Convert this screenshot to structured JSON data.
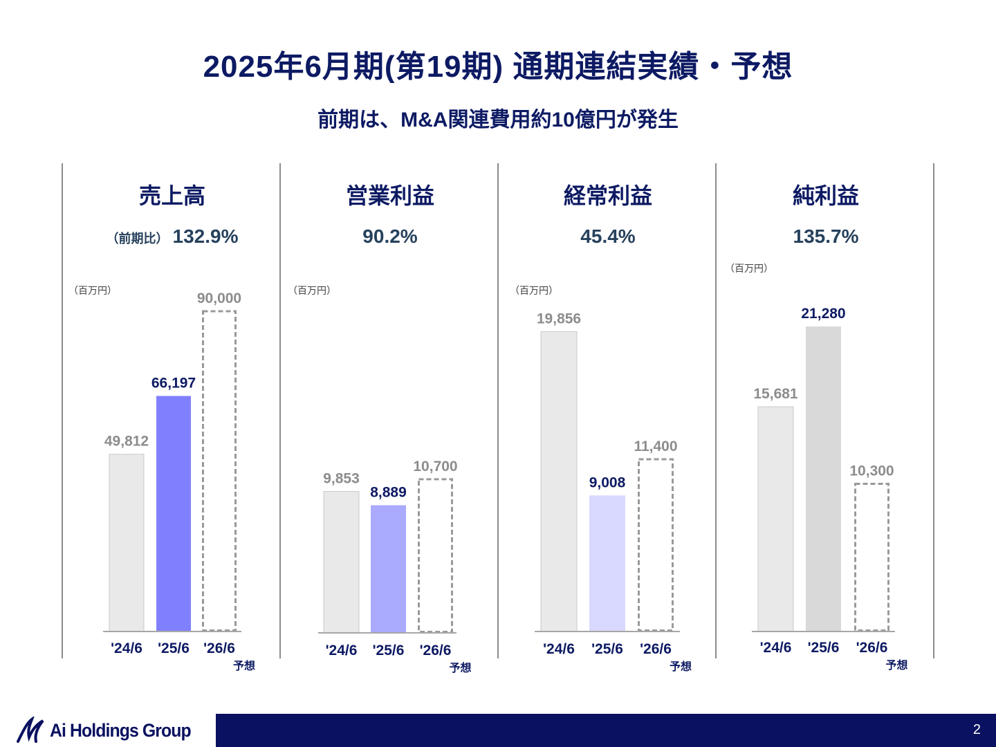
{
  "title": "2025年6月期(第19期) 通期連結実績・予想",
  "subtitle": "前期は、M&A関連費用約10億円が発生",
  "yoy_prefix": "（前期比）",
  "forecast_label": "予想",
  "footer": {
    "logo_text": "Ai Holdings Group",
    "page_number": "2"
  },
  "colors": {
    "navy": "#0d1a63",
    "prev_bar": "#e9e9e9",
    "forecast_border": "#999999"
  },
  "chart_data": [
    {
      "type": "bar",
      "title": "売上高",
      "yoy": "132.9%",
      "unit": "（百万円）",
      "categories": [
        "'24/6",
        "'25/6",
        "'26/6"
      ],
      "values": [
        49812,
        66197,
        90000
      ],
      "value_labels": [
        "49,812",
        "66,197",
        "90,000"
      ],
      "bar_colors": [
        "#e9e9e9",
        "#8080ff",
        "none"
      ],
      "label_colors": [
        "#8c8c8c",
        "#0d1a63",
        "#8c8c8c"
      ],
      "forecast": [
        false,
        false,
        true
      ],
      "ylim": [
        0,
        90000
      ]
    },
    {
      "type": "bar",
      "title": "営業利益",
      "yoy": "90.2%",
      "unit": "（百万円）",
      "categories": [
        "'24/6",
        "'25/6",
        "'26/6"
      ],
      "values": [
        9853,
        8889,
        10700
      ],
      "value_labels": [
        "9,853",
        "8,889",
        "10,700"
      ],
      "bar_colors": [
        "#e9e9e9",
        "#aaaaff",
        "none"
      ],
      "label_colors": [
        "#8c8c8c",
        "#0d1a63",
        "#8c8c8c"
      ],
      "forecast": [
        false,
        false,
        true
      ],
      "ylim": [
        0,
        22400
      ]
    },
    {
      "type": "bar",
      "title": "経常利益",
      "yoy": "45.4%",
      "unit": "（百万円）",
      "categories": [
        "'24/6",
        "'25/6",
        "'26/6"
      ],
      "values": [
        19856,
        9008,
        11400
      ],
      "value_labels": [
        "19,856",
        "9,008",
        "11,400"
      ],
      "bar_colors": [
        "#e9e9e9",
        "#d9d9ff",
        "none"
      ],
      "label_colors": [
        "#8c8c8c",
        "#0d1a63",
        "#8c8c8c"
      ],
      "forecast": [
        false,
        false,
        true
      ],
      "ylim": [
        0,
        21200
      ]
    },
    {
      "type": "bar",
      "title": "純利益",
      "yoy": "135.7%",
      "unit": "（百万円）",
      "categories": [
        "'24/6",
        "'25/6",
        "'26/6"
      ],
      "values": [
        15681,
        21280,
        10300
      ],
      "value_labels": [
        "15,681",
        "21,280",
        "10,300"
      ],
      "bar_colors": [
        "#e9e9e9",
        "#d9d9d9",
        "none"
      ],
      "label_colors": [
        "#8c8c8c",
        "#0d1a63",
        "#8c8c8c"
      ],
      "forecast": [
        false,
        false,
        true
      ],
      "ylim": [
        0,
        21280
      ]
    }
  ]
}
